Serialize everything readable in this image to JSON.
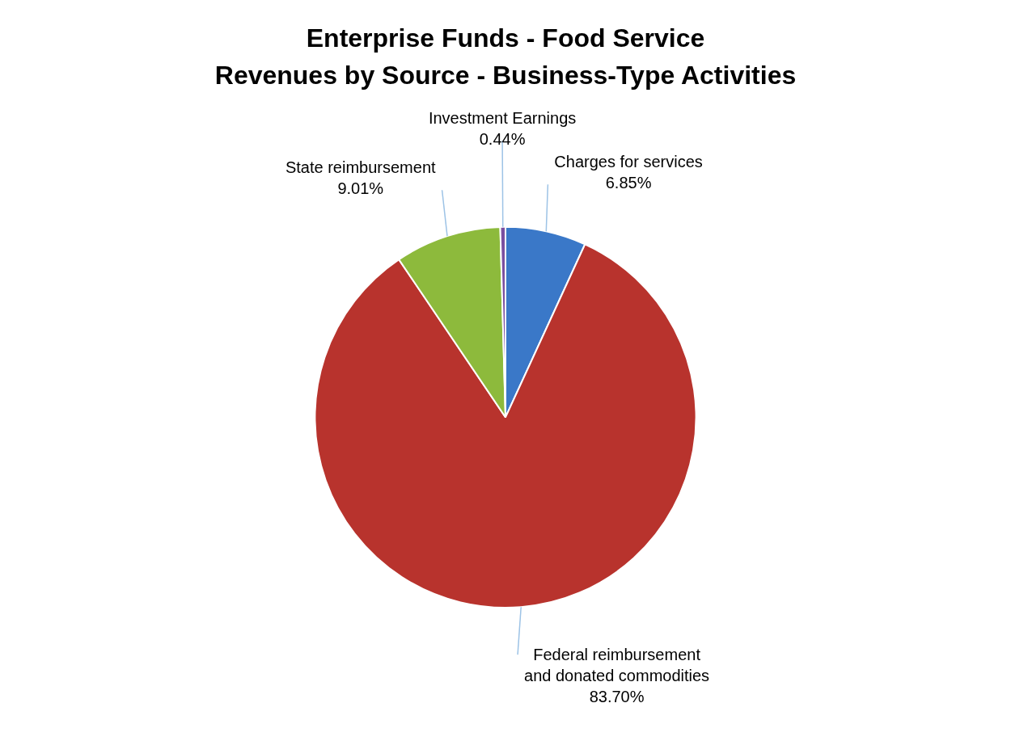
{
  "chart_data": {
    "type": "pie",
    "title": "Enterprise Funds - Food Service",
    "subtitle": "Revenues by Source - Business-Type Activities",
    "categories": [
      "Charges for services",
      "Federal reimbursement and donated commodities",
      "State reimbursement",
      "Investment Earnings"
    ],
    "values": [
      6.85,
      83.7,
      9.01,
      0.44
    ],
    "value_labels": [
      "6.85%",
      "83.70%",
      "9.01%",
      "0.44%"
    ],
    "colors": [
      "#3a78c8",
      "#b8332d",
      "#8dba3c",
      "#7a4fa0"
    ],
    "legend": false
  }
}
